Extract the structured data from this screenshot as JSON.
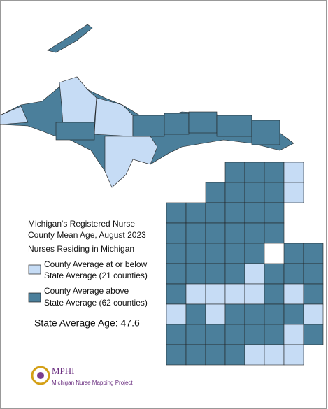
{
  "title_lines": [
    "Michigan's Registered Nurse",
    "County Mean Age, August 2023"
  ],
  "subtitle": "Nurses Residing in Michigan",
  "legend": [
    {
      "lines": [
        "County Average at or below",
        "State Average (21 counties)"
      ],
      "color": "#c6dcf5"
    },
    {
      "lines": [
        "County Average above",
        "State Average (62 counties)"
      ],
      "color": "#4b7f9b"
    }
  ],
  "state_average": "State Average Age: 47.6",
  "logo": {
    "name": "MPHI",
    "tagline": "Michigan Nurse Mapping Project"
  }
}
